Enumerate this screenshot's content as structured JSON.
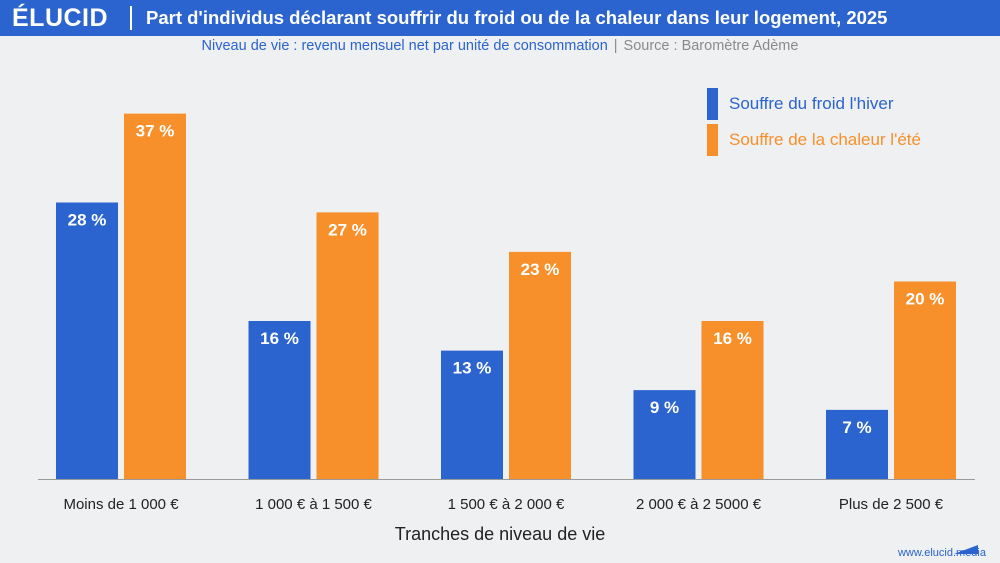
{
  "brand": {
    "logo": "ÉLUCID",
    "website": "www.elucid.media"
  },
  "header": {
    "title": "Part d'individus déclarant souffrir du froid ou de la chaleur dans leur logement, 2025",
    "subtitle": "Niveau de vie : revenu mensuel net par unité de consommation",
    "separator": "|",
    "source": "Source : Baromètre Adème"
  },
  "colors": {
    "header": "#2b63cf",
    "cold": "#2b63cf",
    "heat": "#f7902a",
    "background": "#eef0f2"
  },
  "chart_data": {
    "type": "bar",
    "categories": [
      "Moins de 1 000 €",
      "1 000 € à 1 500 €",
      "1 500 € à 2 000 €",
      "2 000 € à 2 5000 €",
      "Plus de 2 500 €"
    ],
    "series": [
      {
        "name": "Souffre du froid l'hiver",
        "color": "#2b63cf",
        "values": [
          28,
          16,
          13,
          9,
          7
        ],
        "labels": [
          "28 %",
          "16 %",
          "13 %",
          "9 %",
          "7 %"
        ]
      },
      {
        "name": "Souffre de la chaleur l'été",
        "color": "#f7902a",
        "values": [
          37,
          27,
          23,
          16,
          20
        ],
        "labels": [
          "37 %",
          "27 %",
          "23 %",
          "16 %",
          "20 %"
        ]
      }
    ],
    "xlabel": "Tranches de niveau de vie",
    "ylabel": "",
    "ylim": [
      0,
      40
    ],
    "grid": false,
    "legend_position": "top-right"
  }
}
